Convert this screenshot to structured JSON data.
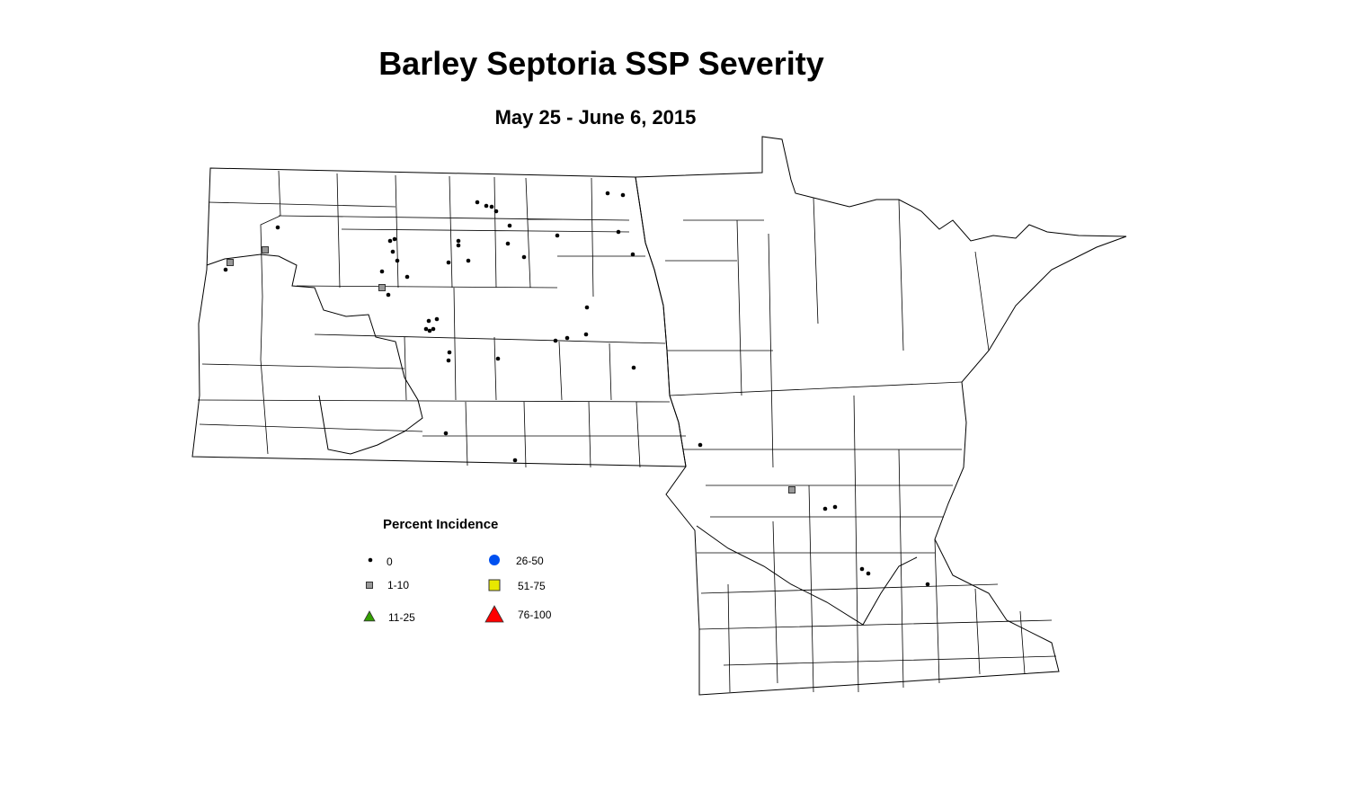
{
  "title": "Barley Septoria SSP Severity",
  "subtitle": "May 25 - June 6, 2015",
  "legend": {
    "title": "Percent Incidence",
    "items": [
      {
        "label": "0",
        "symbol": "dot",
        "color": "#000000"
      },
      {
        "label": "1-10",
        "symbol": "square",
        "color": "#999999"
      },
      {
        "label": "11-25",
        "symbol": "triangle",
        "color": "#33a000"
      },
      {
        "label": "26-50",
        "symbol": "circle",
        "color": "#0050f0"
      },
      {
        "label": "51-75",
        "symbol": "square",
        "color": "#e8e800"
      },
      {
        "label": "76-100",
        "symbol": "triangle",
        "color": "#ff0000"
      }
    ]
  },
  "observations": {
    "category_0_count": 46,
    "category_1_10_count": 4
  }
}
